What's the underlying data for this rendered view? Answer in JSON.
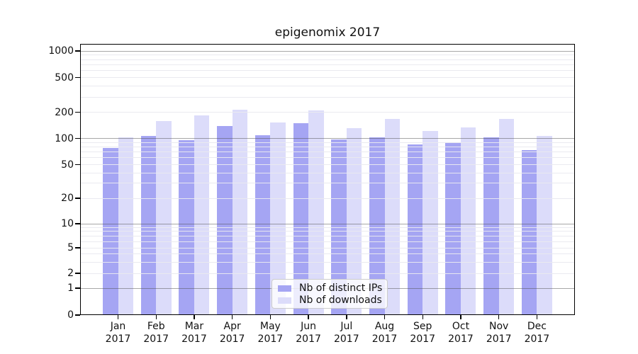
{
  "title": "epigenomix 2017",
  "chart_data": {
    "type": "bar",
    "title": "epigenomix 2017",
    "xlabel": "",
    "ylabel": "",
    "year": "2017",
    "categories": [
      "Jan",
      "Feb",
      "Mar",
      "Apr",
      "May",
      "Jun",
      "Jul",
      "Aug",
      "Sep",
      "Oct",
      "Nov",
      "Dec"
    ],
    "series": [
      {
        "name": "Nb of distinct IPs",
        "color": "#a5a5f3",
        "values": [
          78,
          107,
          96,
          139,
          108,
          150,
          97,
          103,
          85,
          90,
          103,
          74
        ]
      },
      {
        "name": "Nb of downloads",
        "color": "#dcdcfa",
        "values": [
          102,
          158,
          185,
          213,
          153,
          210,
          132,
          168,
          123,
          133,
          168,
          107
        ]
      }
    ],
    "yticks": [
      0,
      1,
      2,
      5,
      10,
      20,
      50,
      100,
      200,
      500,
      1000
    ],
    "y_major_gridlines": [
      1,
      10,
      100,
      1000
    ],
    "y_minor_gridlines": [
      2,
      3,
      4,
      5,
      6,
      7,
      8,
      9,
      20,
      30,
      40,
      50,
      60,
      70,
      80,
      90,
      200,
      300,
      400,
      500,
      600,
      700,
      800,
      900
    ],
    "ylim": [
      0,
      1400
    ],
    "yscale": "log-like with linear segment near zero",
    "grid": "horizontal major+minor",
    "legend_position": "lower center"
  },
  "colors": {
    "background": "#ffffff",
    "bar_ips": "#a5a5f3",
    "bar_downloads": "#dcdcfa",
    "grid_major": "#a8a8a8",
    "grid_minor": "#ececf0",
    "axis": "#000000",
    "legend_border": "#cccccc"
  }
}
